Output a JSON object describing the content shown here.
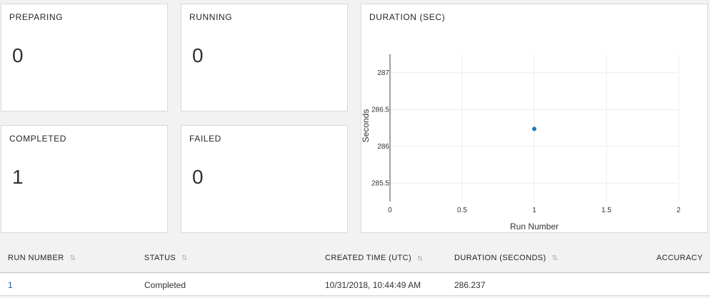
{
  "status_cards": {
    "preparing": {
      "label": "PREPARING",
      "value": "0"
    },
    "running": {
      "label": "RUNNING",
      "value": "0"
    },
    "completed": {
      "label": "COMPLETED",
      "value": "1"
    },
    "failed": {
      "label": "FAILED",
      "value": "0"
    }
  },
  "duration_card": {
    "title": "DURATION (SEC)"
  },
  "chart_data": {
    "type": "scatter",
    "title": "DURATION (SEC)",
    "xlabel": "Run Number",
    "ylabel": "Seconds",
    "xlim": [
      0,
      2
    ],
    "ylim": [
      285.25,
      287.25
    ],
    "x_ticks": [
      0,
      0.5,
      1,
      1.5,
      2
    ],
    "x_tick_labels": [
      "0",
      "0.5",
      "1",
      "1.5",
      "2"
    ],
    "y_ticks": [
      285.5,
      286,
      286.5,
      287
    ],
    "y_tick_labels": [
      "285.5",
      "286",
      "286.5",
      "287"
    ],
    "grid": true,
    "series": [
      {
        "name": "Duration",
        "x": [
          1
        ],
        "y": [
          286.237
        ],
        "color": "#1f77b4"
      }
    ]
  },
  "table": {
    "columns": {
      "run_number": "RUN NUMBER",
      "status": "STATUS",
      "created_time": "CREATED TIME (UTC)",
      "duration": "DURATION (SECONDS)",
      "accuracy": "ACCURACY"
    },
    "sort_icons": {
      "inactive": "⇅",
      "active": "↑↓"
    },
    "rows": [
      {
        "run_number": "1",
        "status": "Completed",
        "created_time": "10/31/2018, 10:44:49 AM",
        "duration": "286.237",
        "accuracy": ""
      }
    ]
  }
}
